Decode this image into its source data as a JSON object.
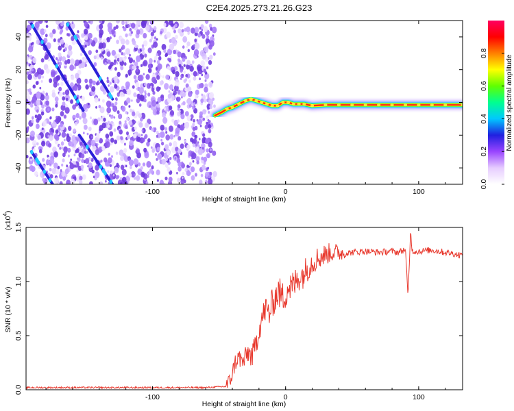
{
  "title": "C2E4.2025.273.21.26.G23",
  "chart_data": [
    {
      "type": "heatmap",
      "xlabel": "Height of straight line (km)",
      "ylabel": "Frequency (Hz)",
      "xlim": [
        -195,
        133
      ],
      "ylim": [
        -50,
        50
      ],
      "xticks": [
        -100,
        0,
        100
      ],
      "xtick_labels": [
        "-100",
        "0",
        "100"
      ],
      "yticks": [
        -40,
        -20,
        0,
        20,
        40
      ],
      "ytick_labels": [
        "-40",
        "-20",
        "0",
        "20",
        "40"
      ],
      "noise_region_x": [
        -195,
        -53
      ],
      "diagonal_streaks": [
        {
          "x": [
            -191,
            -152
          ],
          "y": [
            48,
            -5
          ]
        },
        {
          "x": [
            -191,
            -175
          ],
          "y": [
            -30,
            -50
          ]
        },
        {
          "x": [
            -164,
            -130
          ],
          "y": [
            48,
            2
          ]
        },
        {
          "x": [
            -155,
            -130
          ],
          "y": [
            -20,
            -50
          ]
        }
      ],
      "signal_track": {
        "x": [
          -53,
          -48,
          -44,
          -40,
          -35,
          -30,
          -26,
          -22,
          -18,
          -14,
          -10,
          -6,
          -2,
          2,
          6,
          10,
          14,
          20,
          30,
          40,
          50,
          60,
          70,
          80,
          90,
          100,
          110,
          120,
          133
        ],
        "y": [
          -8,
          -6,
          -4,
          -3,
          -1,
          1,
          2,
          1,
          0,
          -1,
          -2,
          -2,
          0,
          0,
          -1,
          -1,
          -1,
          -2,
          -1.5,
          -1.5,
          -1.5,
          -1.5,
          -1.5,
          -1.5,
          -1.5,
          -1.5,
          -1.5,
          -1.5,
          -1.5
        ]
      },
      "grid": false
    },
    {
      "type": "colorbar",
      "label": "Normalized spectral amplitude",
      "range": [
        0,
        1
      ],
      "ticks": [
        0.0,
        0.2,
        0.4,
        0.6,
        0.8
      ],
      "tick_labels": [
        "0.0",
        "0.2",
        "0.4",
        "0.6",
        "0.8"
      ],
      "colors": [
        "#ffffff",
        "#e6ccff",
        "#9944ff",
        "#2020e0",
        "#00c8ff",
        "#00ff90",
        "#60ff00",
        "#ffff00",
        "#ff8000",
        "#ff0000",
        "#ff0060"
      ]
    },
    {
      "type": "line",
      "xlabel": "Height of straight line (km)",
      "ylabel": "SNR (10 * v/v)",
      "exponent_label": "(x10",
      "exponent_sup": "4",
      "xlim": [
        -195,
        133
      ],
      "ylim": [
        0,
        1.5
      ],
      "xticks": [
        -100,
        0,
        100
      ],
      "xtick_labels": [
        "-100",
        "0",
        "100"
      ],
      "yticks": [
        0,
        0.5,
        1.0,
        1.5
      ],
      "ytick_labels": [
        "0.0",
        "0.5",
        "1.0",
        "1.5"
      ],
      "series": [
        {
          "color": "#e8392e",
          "x": [
            -195,
            -150,
            -120,
            -100,
            -80,
            -60,
            -45,
            -42,
            -40,
            -38,
            -35,
            -32,
            -30,
            -28,
            -25,
            -22,
            -20,
            -18,
            -15,
            -12,
            -10,
            -8,
            -5,
            -2,
            0,
            2,
            5,
            8,
            10,
            12,
            15,
            18,
            20,
            22,
            25,
            30,
            35,
            40,
            45,
            50,
            60,
            70,
            80,
            85,
            90,
            92,
            94,
            95,
            100,
            110,
            120,
            125,
            133
          ],
          "y": [
            0.02,
            0.02,
            0.02,
            0.02,
            0.02,
            0.02,
            0.03,
            0.08,
            0.15,
            0.25,
            0.3,
            0.25,
            0.3,
            0.35,
            0.3,
            0.45,
            0.55,
            0.65,
            0.75,
            0.7,
            0.8,
            0.85,
            0.9,
            0.85,
            0.9,
            0.95,
            0.95,
            1.0,
            1.05,
            1.05,
            1.1,
            1.15,
            1.18,
            1.2,
            1.22,
            1.25,
            1.27,
            1.27,
            1.26,
            1.27,
            1.28,
            1.27,
            1.28,
            1.27,
            1.3,
            0.85,
            1.5,
            1.28,
            1.28,
            1.29,
            1.27,
            1.26,
            1.24
          ]
        }
      ],
      "grid": false
    }
  ]
}
